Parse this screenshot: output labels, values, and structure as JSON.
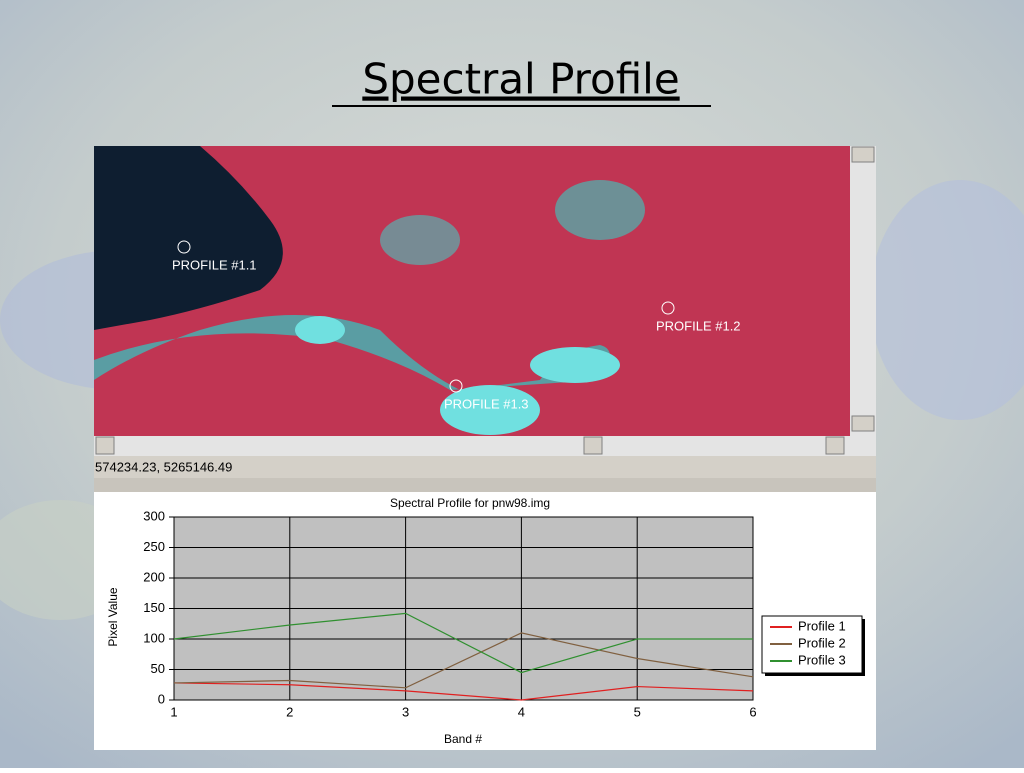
{
  "title": "Spectral Profile",
  "viewer": {
    "markers": [
      {
        "label": "PROFILE #1.1"
      },
      {
        "label": "PROFILE #1.2"
      },
      {
        "label": "PROFILE #1.3"
      }
    ],
    "coordinates": "574234.23, 5265146.49"
  },
  "chart_data": {
    "type": "line",
    "title": "Spectral Profile for pnw98.img",
    "x_label": "Band #",
    "y_label": "Pixel Value",
    "x": [
      1,
      2,
      3,
      4,
      5,
      6
    ],
    "xlim": [
      1,
      6
    ],
    "xticks": [
      1,
      2,
      3,
      4,
      5,
      6
    ],
    "ylim": [
      0,
      300
    ],
    "yticks": [
      0,
      50,
      100,
      150,
      200,
      250,
      300
    ],
    "grid": true,
    "legend": "right",
    "series": [
      {
        "name": "Profile 1",
        "color": "#e02020",
        "values": [
          28,
          25,
          15,
          0,
          22,
          15
        ]
      },
      {
        "name": "Profile 2",
        "color": "#806040",
        "values": [
          28,
          32,
          20,
          110,
          68,
          38
        ]
      },
      {
        "name": "Profile 3",
        "color": "#309030",
        "values": [
          100,
          123,
          142,
          45,
          100,
          100
        ]
      }
    ]
  }
}
